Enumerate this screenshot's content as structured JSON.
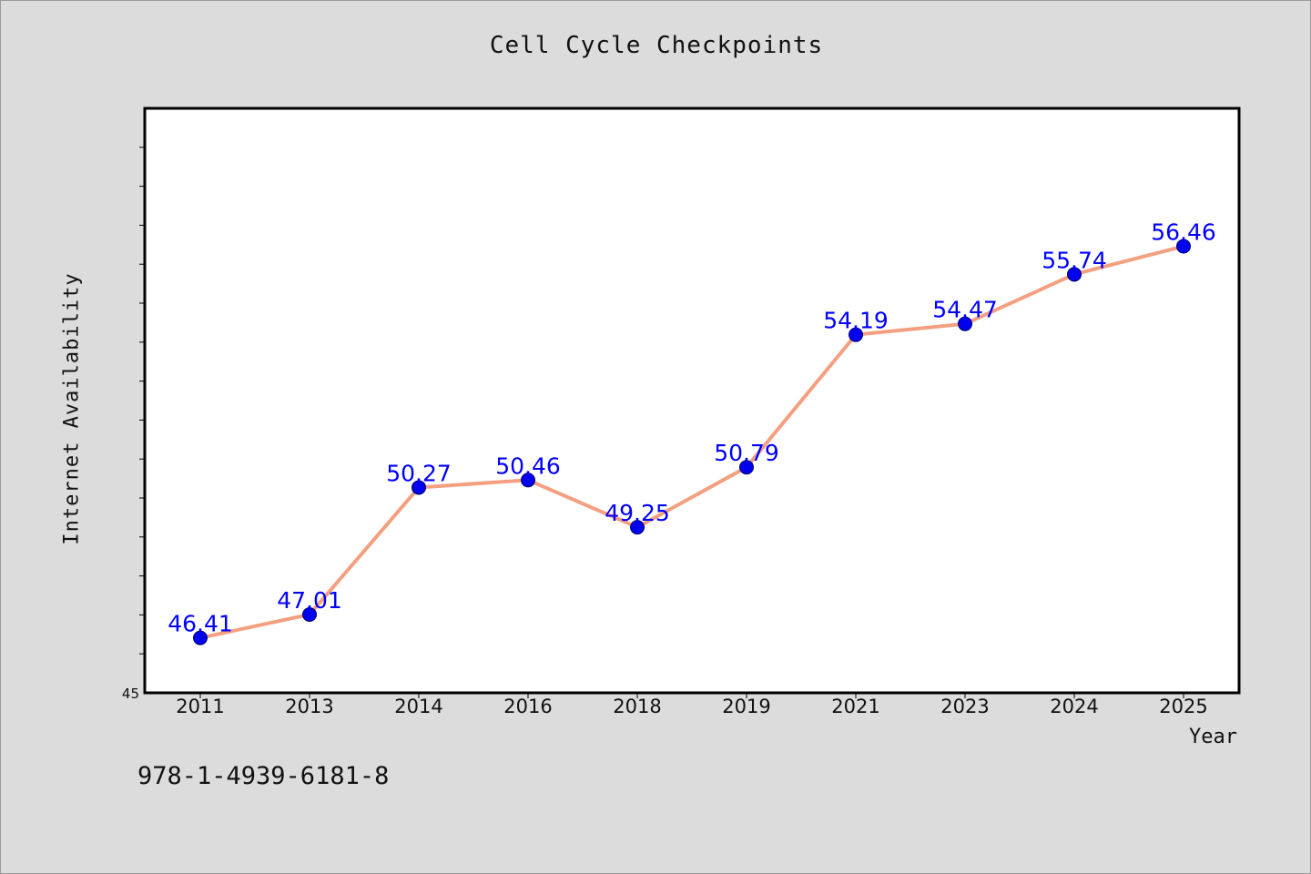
{
  "footer_code": "978-1-4939-6181-8",
  "colors": {
    "background": "#dcdcdc",
    "plot_background": "#ffffff",
    "line": "#f4a080",
    "marker": "#0000ee",
    "data_label": "#0000ff"
  },
  "chart_data": {
    "type": "line",
    "title": "Cell Cycle Checkpoints",
    "xlabel": "Year",
    "ylabel": "Internet Availability",
    "categories": [
      "2011",
      "2013",
      "2014",
      "2016",
      "2018",
      "2019",
      "2021",
      "2023",
      "2024",
      "2025"
    ],
    "series": [
      {
        "values": [
          46.41,
          47.01,
          50.27,
          50.46,
          49.25,
          50.79,
          54.19,
          54.47,
          55.74,
          56.46
        ],
        "labels": [
          "46.41",
          "47.01",
          "50.27",
          "50.46",
          "49.25",
          "50.79",
          "54.19",
          "54.47",
          "55.74",
          "56.46"
        ]
      }
    ],
    "ylim": [
      45,
      60
    ],
    "y_tick_labels": [
      "45"
    ],
    "grid": false,
    "legend": "none"
  }
}
